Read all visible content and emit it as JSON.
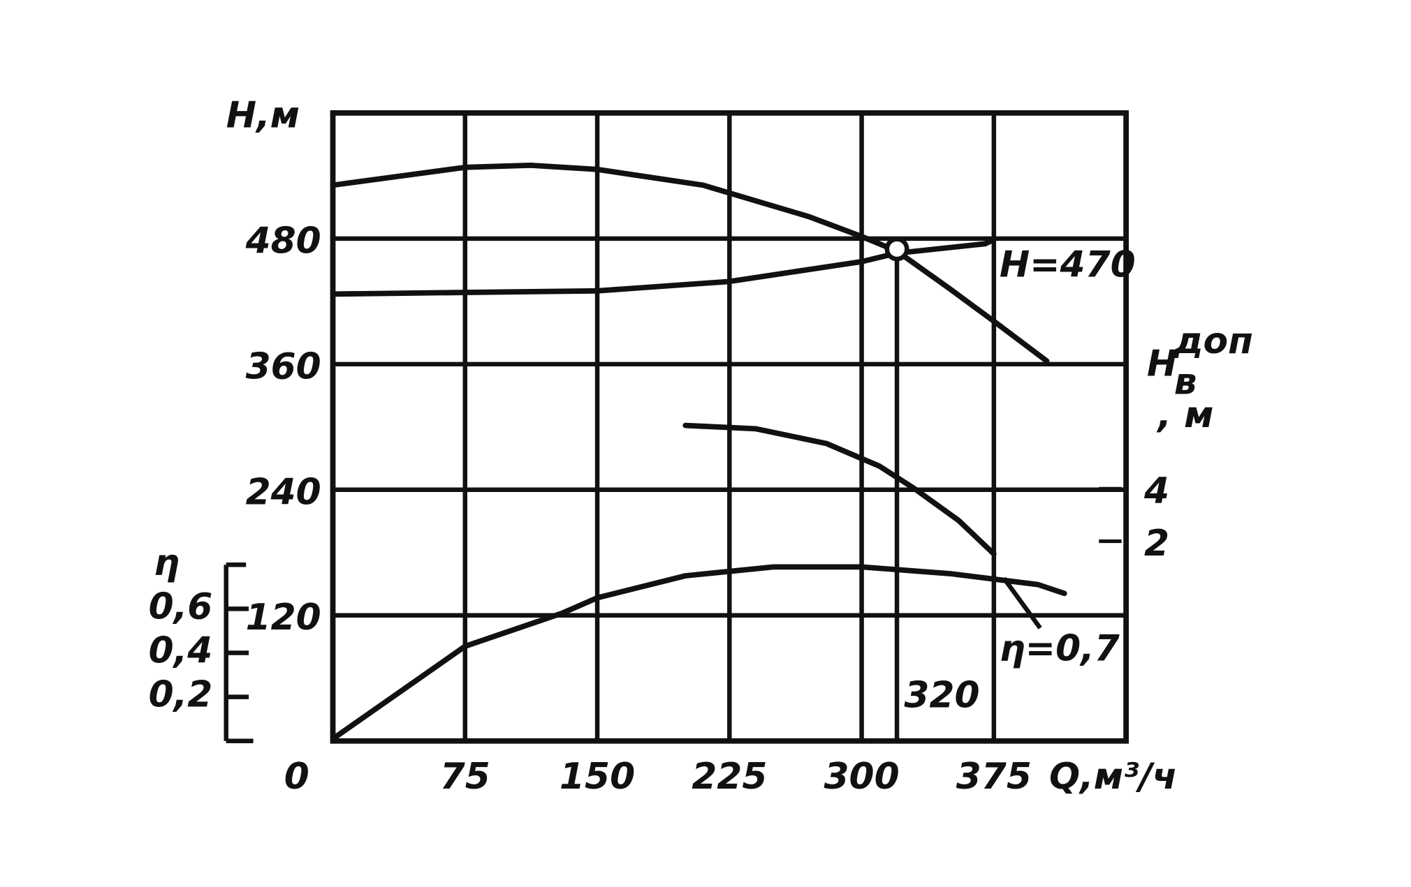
{
  "chart_data": {
    "type": "line",
    "y_label": "H,м",
    "x_label": "Q,м³/ч",
    "y2_label": {
      "main": "H",
      "sub": "в",
      "sup": "доп",
      "unit": ", м"
    },
    "eta_label": "η",
    "xlim": [
      0,
      450
    ],
    "xticks": [
      0,
      75,
      150,
      225,
      300,
      375
    ],
    "ylim": [
      0,
      600
    ],
    "yticks": [
      120,
      240,
      360,
      480
    ],
    "y2lim": [
      -5.6,
      18.3
    ],
    "y2ticks": [
      2,
      4
    ],
    "etalim": [
      0,
      0.8
    ],
    "etaticks": [
      {
        "value": 0.2,
        "label": "0,2"
      },
      {
        "value": 0.4,
        "label": "0,4"
      },
      {
        "value": 0.6,
        "label": "0,6"
      }
    ],
    "grid": true,
    "color": "#111111",
    "series": [
      {
        "axis": "y",
        "x": [
          0,
          75,
          112,
          150,
          210,
          270,
          300,
          320,
          350,
          375,
          405
        ],
        "values": [
          531,
          548,
          550,
          546,
          531,
          501,
          482,
          468,
          432,
          401,
          363
        ]
      },
      {
        "axis": "y",
        "x": [
          0,
          150,
          225,
          300,
          320,
          370,
          375
        ],
        "values": [
          427,
          430,
          439,
          458,
          466,
          475,
          479
        ]
      },
      {
        "axis": "y2",
        "x": [
          200,
          240,
          280,
          310,
          330,
          355,
          375
        ],
        "values": [
          6.41,
          6.28,
          5.72,
          4.86,
          4.0,
          2.79,
          1.52
        ]
      },
      {
        "axis": "eta",
        "x": [
          0,
          75,
          130,
          150,
          200,
          250,
          300,
          350,
          400,
          415
        ],
        "values": [
          0.01,
          0.43,
          0.58,
          0.65,
          0.75,
          0.79,
          0.79,
          0.76,
          0.71,
          0.67
        ]
      }
    ],
    "operating_point": {
      "q": 320,
      "h": 470,
      "h_label": "H=470",
      "q_label": "320"
    },
    "eta_note": "η=0,7"
  }
}
